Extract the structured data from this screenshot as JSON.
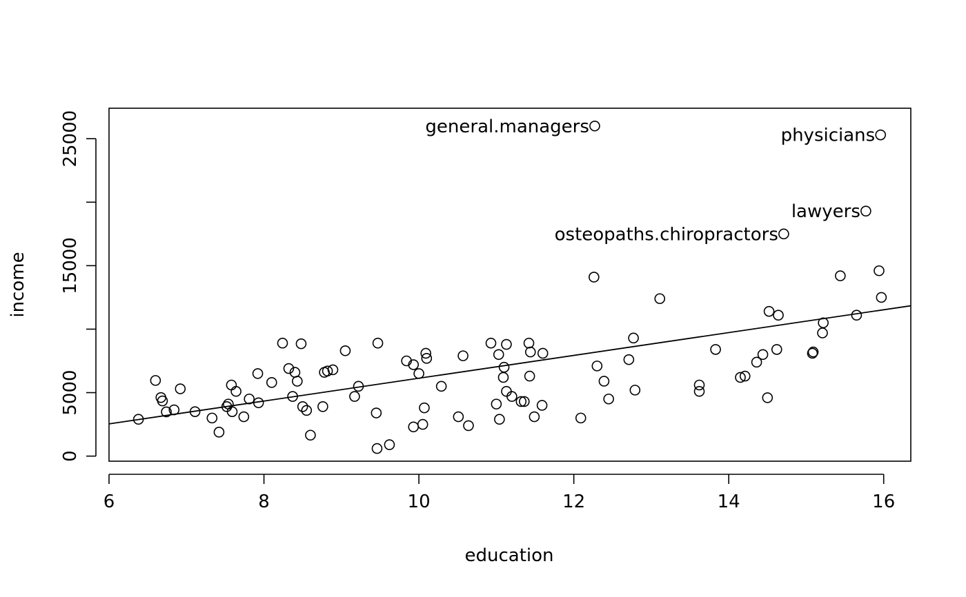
{
  "chart_data": {
    "type": "scatter",
    "title": "",
    "xlabel": "education",
    "ylabel": "income",
    "xlim": [
      6,
      16.35
    ],
    "ylim": [
      -400,
      27400
    ],
    "xticks": [
      6,
      8,
      10,
      12,
      14,
      16
    ],
    "yticks": [
      0,
      5000,
      15000,
      25000
    ],
    "yticks_minor": [
      10000,
      20000
    ],
    "grid": false,
    "regression_line": {
      "intercept": -2853.6,
      "slope": 898.8
    },
    "points": [
      [
        6.38,
        2901
      ],
      [
        6.6,
        5959
      ],
      [
        6.67,
        4614
      ],
      [
        6.69,
        4348
      ],
      [
        6.74,
        3485
      ],
      [
        6.84,
        3643
      ],
      [
        6.92,
        5299
      ],
      [
        7.11,
        3500
      ],
      [
        7.33,
        3000
      ],
      [
        7.42,
        1890
      ],
      [
        7.52,
        3900
      ],
      [
        7.54,
        4100
      ],
      [
        7.58,
        5600
      ],
      [
        7.59,
        3500
      ],
      [
        7.64,
        5100
      ],
      [
        7.74,
        3100
      ],
      [
        7.81,
        4500
      ],
      [
        7.92,
        6500
      ],
      [
        7.93,
        4200
      ],
      [
        8.1,
        5800
      ],
      [
        8.24,
        8900
      ],
      [
        8.32,
        6900
      ],
      [
        8.37,
        4700
      ],
      [
        8.4,
        6600
      ],
      [
        8.43,
        5900
      ],
      [
        8.48,
        8850
      ],
      [
        8.5,
        3900
      ],
      [
        8.55,
        3600
      ],
      [
        8.6,
        1650
      ],
      [
        8.76,
        3900
      ],
      [
        8.78,
        6600
      ],
      [
        8.82,
        6700
      ],
      [
        8.89,
        6800
      ],
      [
        9.05,
        8300
      ],
      [
        9.17,
        4700
      ],
      [
        9.22,
        5500
      ],
      [
        9.45,
        3400
      ],
      [
        9.46,
        600
      ],
      [
        9.47,
        8900
      ],
      [
        9.62,
        900
      ],
      [
        9.84,
        7500
      ],
      [
        9.93,
        2300
      ],
      [
        9.93,
        7200
      ],
      [
        10.0,
        6500
      ],
      [
        10.05,
        2500
      ],
      [
        10.07,
        3800
      ],
      [
        10.09,
        8100
      ],
      [
        10.1,
        7700
      ],
      [
        10.29,
        5500
      ],
      [
        10.51,
        3100
      ],
      [
        10.57,
        7900
      ],
      [
        10.64,
        2400
      ],
      [
        10.93,
        8900
      ],
      [
        11.0,
        4100
      ],
      [
        11.03,
        8000
      ],
      [
        11.04,
        2900
      ],
      [
        11.09,
        6200
      ],
      [
        11.1,
        7000
      ],
      [
        11.13,
        8800
      ],
      [
        11.13,
        5100
      ],
      [
        11.2,
        4700
      ],
      [
        11.32,
        4300
      ],
      [
        11.36,
        4300
      ],
      [
        11.42,
        8900
      ],
      [
        11.43,
        6300
      ],
      [
        11.44,
        8200
      ],
      [
        11.49,
        3100
      ],
      [
        11.59,
        4000
      ],
      [
        11.6,
        8100
      ],
      [
        12.09,
        3000
      ],
      [
        12.26,
        14100
      ],
      [
        12.3,
        7100
      ],
      [
        12.39,
        5900
      ],
      [
        12.45,
        4500
      ],
      [
        12.71,
        7600
      ],
      [
        12.77,
        9300
      ],
      [
        12.79,
        5200
      ],
      [
        13.11,
        12400
      ],
      [
        13.62,
        5600
      ],
      [
        13.62,
        5100
      ],
      [
        13.83,
        8400
      ],
      [
        14.15,
        6200
      ],
      [
        14.21,
        6300
      ],
      [
        14.36,
        7400
      ],
      [
        14.44,
        8000
      ],
      [
        14.5,
        4600
      ],
      [
        14.52,
        11400
      ],
      [
        14.62,
        8400
      ],
      [
        14.64,
        11100
      ],
      [
        15.08,
        8100
      ],
      [
        15.09,
        8200
      ],
      [
        15.21,
        9700
      ],
      [
        15.22,
        10500
      ],
      [
        15.44,
        14200
      ],
      [
        15.65,
        11100
      ],
      [
        15.94,
        14600
      ],
      [
        15.97,
        12500
      ]
    ],
    "labeled_points": [
      {
        "x": 12.27,
        "y": 26000,
        "label": "general.managers"
      },
      {
        "x": 15.96,
        "y": 25300,
        "label": "physicians"
      },
      {
        "x": 15.77,
        "y": 19300,
        "label": "lawyers"
      },
      {
        "x": 14.71,
        "y": 17500,
        "label": "osteopaths.chiropractors"
      }
    ]
  }
}
